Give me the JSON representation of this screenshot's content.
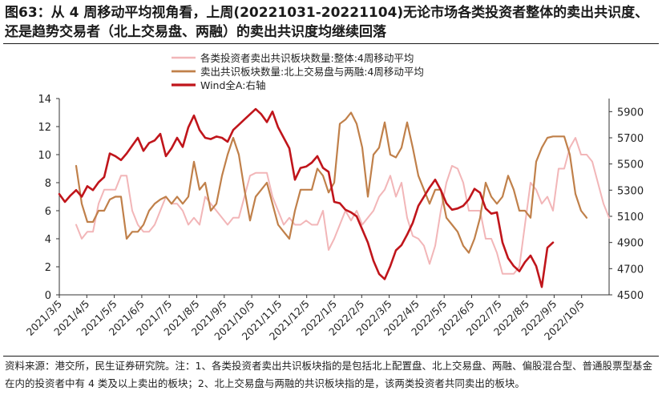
{
  "figure": {
    "title": "图63：从 4 周移动平均视角看，上周(20221031-20221104)无论市场各类投资者整体的卖出共识度、还是趋势交易者（北上交易盘、两融）的卖出共识度均继续回落",
    "source_label": "资料来源：港交所，民生证券研究院。",
    "note_text": "注：1、各类投资者卖出共识板块指的是包括北上配置盘、北上交易盘、两融、偏股混合型、普通股票型基金在内的投资者中有 4 类及以上卖出的板块；2、北上交易盘与两融的共识板块指的是，该两类投资者共同卖出的板块。"
  },
  "chart_data": {
    "type": "line",
    "x_tick_labels": [
      "2021/3/5",
      "2021/4/5",
      "2021/5/5",
      "2021/6/5",
      "2021/7/5",
      "2021/8/5",
      "2021/9/5",
      "2021/10/5",
      "2021/11/5",
      "2021/12/5",
      "2022/1/5",
      "2022/2/5",
      "2022/3/5",
      "2022/4/5",
      "2022/5/5",
      "2022/6/5",
      "2022/7/5",
      "2022/8/5",
      "2022/9/5",
      "2022/10/5"
    ],
    "left_axis": {
      "min": 0,
      "max": 14,
      "step": 2,
      "ticks": [
        "0",
        "2",
        "4",
        "6",
        "8",
        "10",
        "12",
        "14"
      ]
    },
    "right_axis": {
      "min": 4500,
      "max": 6000,
      "step": 200,
      "ticks": [
        "4500",
        "4700",
        "4900",
        "5100",
        "5300",
        "5500",
        "5700",
        "5900"
      ]
    },
    "series": [
      {
        "name": "各类投资者卖出共识板块数量:整体:4周移动平均",
        "axis": "left",
        "color": "#f2b6b8",
        "width": 2,
        "start_index": 3,
        "values": [
          5,
          4,
          4.5,
          4.5,
          6.5,
          7.5,
          7.5,
          7.5,
          8.5,
          8.5,
          6,
          5,
          4.5,
          4.5,
          5,
          6,
          7,
          6.5,
          6.5,
          6,
          5,
          5.5,
          5,
          7,
          6.5,
          6,
          5.5,
          5,
          5.5,
          5.5,
          7,
          8.5,
          8.7,
          8.7,
          8.7,
          7,
          6,
          5,
          5.5,
          5,
          5,
          5.3,
          5,
          5,
          6,
          3.2,
          4,
          5,
          6,
          5.3,
          6,
          5,
          5.5,
          6,
          7,
          7.5,
          8.5,
          7,
          8,
          5.5,
          4.2,
          4,
          3.5,
          2.2,
          3.5,
          6,
          8,
          9.2,
          9,
          8,
          6,
          6,
          6,
          4,
          4,
          3,
          1.5,
          1.5,
          1.5,
          2,
          5,
          8,
          7.5,
          6.5,
          7,
          6,
          9,
          9,
          10.5,
          11.2,
          10,
          10,
          9.5,
          8,
          6.5,
          5.5
        ]
      },
      {
        "name": "卖出共识板块数量:北上交易盘与两融:4周移动平均",
        "axis": "left",
        "color": "#c0804a",
        "width": 2.2,
        "start_index": 3,
        "values": [
          9.2,
          6.5,
          5.2,
          5.2,
          6,
          6,
          6.8,
          7,
          7,
          4,
          4.5,
          4.5,
          5,
          6,
          6.5,
          6.8,
          7,
          6.5,
          7,
          6.5,
          7,
          9.5,
          7.5,
          8,
          6,
          6.5,
          8.5,
          10,
          11.2,
          10,
          7.5,
          5.3,
          7,
          7.5,
          8,
          6.5,
          5,
          4.5,
          4,
          6,
          7.5,
          7.5,
          7.5,
          9,
          8.5,
          7.3,
          8,
          12.2,
          12.5,
          13,
          12.2,
          10.5,
          7,
          10,
          10.5,
          12.3,
          10,
          9.8,
          10.5,
          12.3,
          10.5,
          8.5,
          7.5,
          6.5,
          7.5,
          7.5,
          5.5,
          5,
          4.5,
          3.5,
          3,
          4,
          5.5,
          8,
          7,
          6.5,
          7,
          8.5,
          7.5,
          6,
          6,
          5.5,
          9.5,
          10.5,
          11.2,
          11.3,
          11.3,
          11.3,
          10,
          7.2,
          6,
          5.5
        ]
      },
      {
        "name": "Wind全A:右轴",
        "axis": "right",
        "color": "#c0151b",
        "width": 2.6,
        "start_index": 0,
        "values": [
          5270,
          5210,
          5260,
          5300,
          5250,
          5330,
          5300,
          5360,
          5400,
          5580,
          5560,
          5530,
          5580,
          5640,
          5700,
          5600,
          5660,
          5680,
          5730,
          5560,
          5620,
          5700,
          5630,
          5780,
          5870,
          5760,
          5700,
          5690,
          5710,
          5700,
          5670,
          5760,
          5800,
          5840,
          5880,
          5920,
          5880,
          5820,
          5900,
          5780,
          5700,
          5620,
          5380,
          5470,
          5480,
          5510,
          5560,
          5470,
          5440,
          5210,
          5200,
          5150,
          5130,
          5100,
          5000,
          4900,
          4760,
          4660,
          4620,
          4720,
          4840,
          4880,
          4960,
          5050,
          5180,
          5250,
          5320,
          5380,
          5300,
          5200,
          5150,
          5160,
          5180,
          5230,
          5310,
          5280,
          5160,
          5120,
          5130,
          4900,
          4780,
          4720,
          4680,
          4750,
          4800,
          4720,
          4560,
          4860,
          4900
        ]
      }
    ],
    "legend": [
      "各类投资者卖出共识板块数量:整体:4周移动平均",
      "卖出共识板块数量:北上交易盘与两融:4周移动平均",
      "Wind全A:右轴"
    ],
    "legend_position": "top-left",
    "grid": false
  }
}
